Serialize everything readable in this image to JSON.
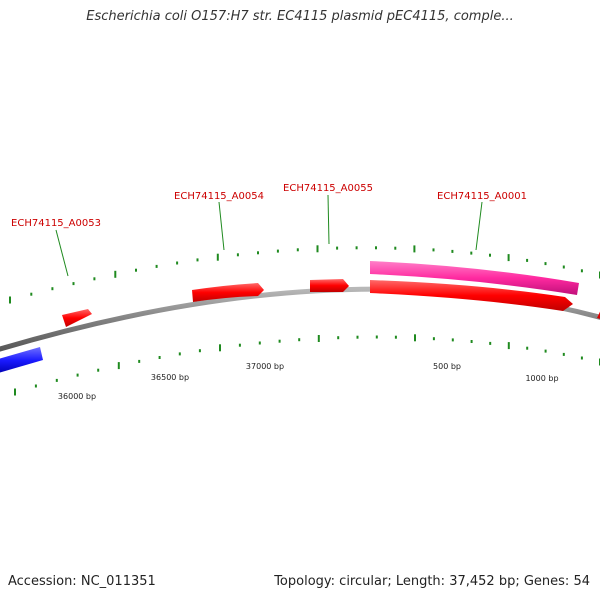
{
  "title": "Escherichia coli O157:H7 str. EC4115 plasmid pEC4115, comple...",
  "footer": {
    "accession_label": "Accession:",
    "accession": "NC_011351",
    "topology_label": "Topology:",
    "topology": "circular",
    "length_label": "Length:",
    "length": "37,452 bp",
    "genes_label": "Genes:",
    "genes": "54"
  },
  "gene_labels": [
    "ECH74115_A0053",
    "ECH74115_A0054",
    "ECH74115_A0055",
    "ECH74115_A0001"
  ],
  "bp_labels": [
    "36000 bp",
    "36500 bp",
    "37000 bp",
    "500 bp",
    "1000 bp"
  ],
  "colors": {
    "backbone": "#808080",
    "forward_gene": "#ff0000",
    "highlighted_gene": "#ff2aa0",
    "other_gene": "#1a1aff",
    "tick": "#1f8a1f",
    "gene_label": "#cc0000"
  }
}
